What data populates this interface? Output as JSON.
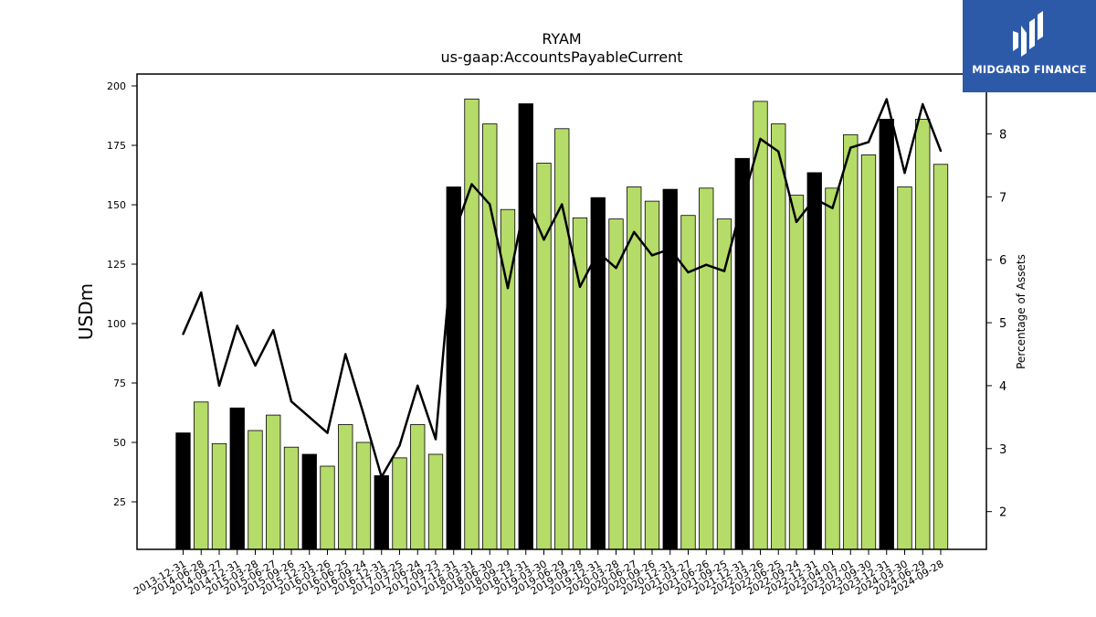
{
  "brand": {
    "name": "MIDGARD FINANCE",
    "logo_icon": "midgard-logo-icon",
    "bg_color": "#2d5aa8"
  },
  "chart_data": {
    "type": "bar",
    "title": "RYAM",
    "subtitle": "us-gaap:AccountsPayableCurrent",
    "ylabel": "USDm",
    "y2label": "Percentage of Assets",
    "ylim": [
      5,
      205
    ],
    "y2lim": [
      1.4,
      8.95
    ],
    "yticks": [
      25,
      50,
      75,
      100,
      125,
      150,
      175,
      200
    ],
    "y2ticks": [
      2,
      3,
      4,
      5,
      6,
      7,
      8
    ],
    "categories": [
      "2013-12-31",
      "2014-06-28",
      "2014-09-27",
      "2014-12-31",
      "2015-03-28",
      "2015-06-27",
      "2015-09-26",
      "2015-12-31",
      "2016-03-26",
      "2016-06-25",
      "2016-09-24",
      "2016-12-31",
      "2017-03-25",
      "2017-06-24",
      "2017-09-23",
      "2017-12-31",
      "2018-03-31",
      "2018-06-30",
      "2018-09-29",
      "2018-12-31",
      "2019-03-30",
      "2019-06-29",
      "2019-09-28",
      "2019-12-31",
      "2020-03-28",
      "2020-06-27",
      "2020-09-26",
      "2020-12-31",
      "2021-03-27",
      "2021-06-26",
      "2021-09-25",
      "2021-12-31",
      "2022-03-26",
      "2022-06-25",
      "2022-09-24",
      "2022-12-31",
      "2023-04-01",
      "2023-07-01",
      "2023-09-30",
      "2023-12-31",
      "2024-03-30",
      "2024-06-29",
      "2024-09-28"
    ],
    "series": [
      {
        "type": "bar",
        "values": [
          54,
          67,
          49.5,
          64.5,
          55,
          61.5,
          48,
          45,
          40,
          57.5,
          50,
          36,
          43.5,
          57.5,
          45,
          157.5,
          194.5,
          184,
          148,
          192.5,
          167.5,
          182,
          144.5,
          153,
          144,
          157.5,
          151.5,
          156.5,
          145.5,
          157,
          144,
          169.5,
          193.5,
          184,
          154,
          163.5,
          157,
          179.5,
          171,
          186,
          157.5,
          186,
          167
        ],
        "highlight": [
          true,
          false,
          false,
          true,
          false,
          false,
          false,
          true,
          false,
          false,
          false,
          true,
          false,
          false,
          false,
          true,
          false,
          false,
          false,
          true,
          false,
          false,
          false,
          true,
          false,
          false,
          false,
          true,
          false,
          false,
          false,
          true,
          false,
          false,
          false,
          true,
          false,
          false,
          false,
          true,
          false,
          false,
          false
        ],
        "color": "#b5dc68",
        "highlight_color": "#000000"
      },
      {
        "type": "line",
        "axis": "right",
        "values": [
          4.82,
          5.48,
          4,
          4.95,
          4.32,
          4.88,
          3.75,
          3.5,
          3.25,
          4.5,
          3.55,
          2.55,
          3.05,
          4,
          3.15,
          6.4,
          7.2,
          6.88,
          5.55,
          6.98,
          6.32,
          6.88,
          5.57,
          6.12,
          5.87,
          6.44,
          6.07,
          6.17,
          5.8,
          5.92,
          5.82,
          6.9,
          7.92,
          7.72,
          6.6,
          6.97,
          6.82,
          7.78,
          7.87,
          8.55,
          7.38,
          8.47,
          7.73
        ],
        "color": "#000000"
      }
    ]
  }
}
